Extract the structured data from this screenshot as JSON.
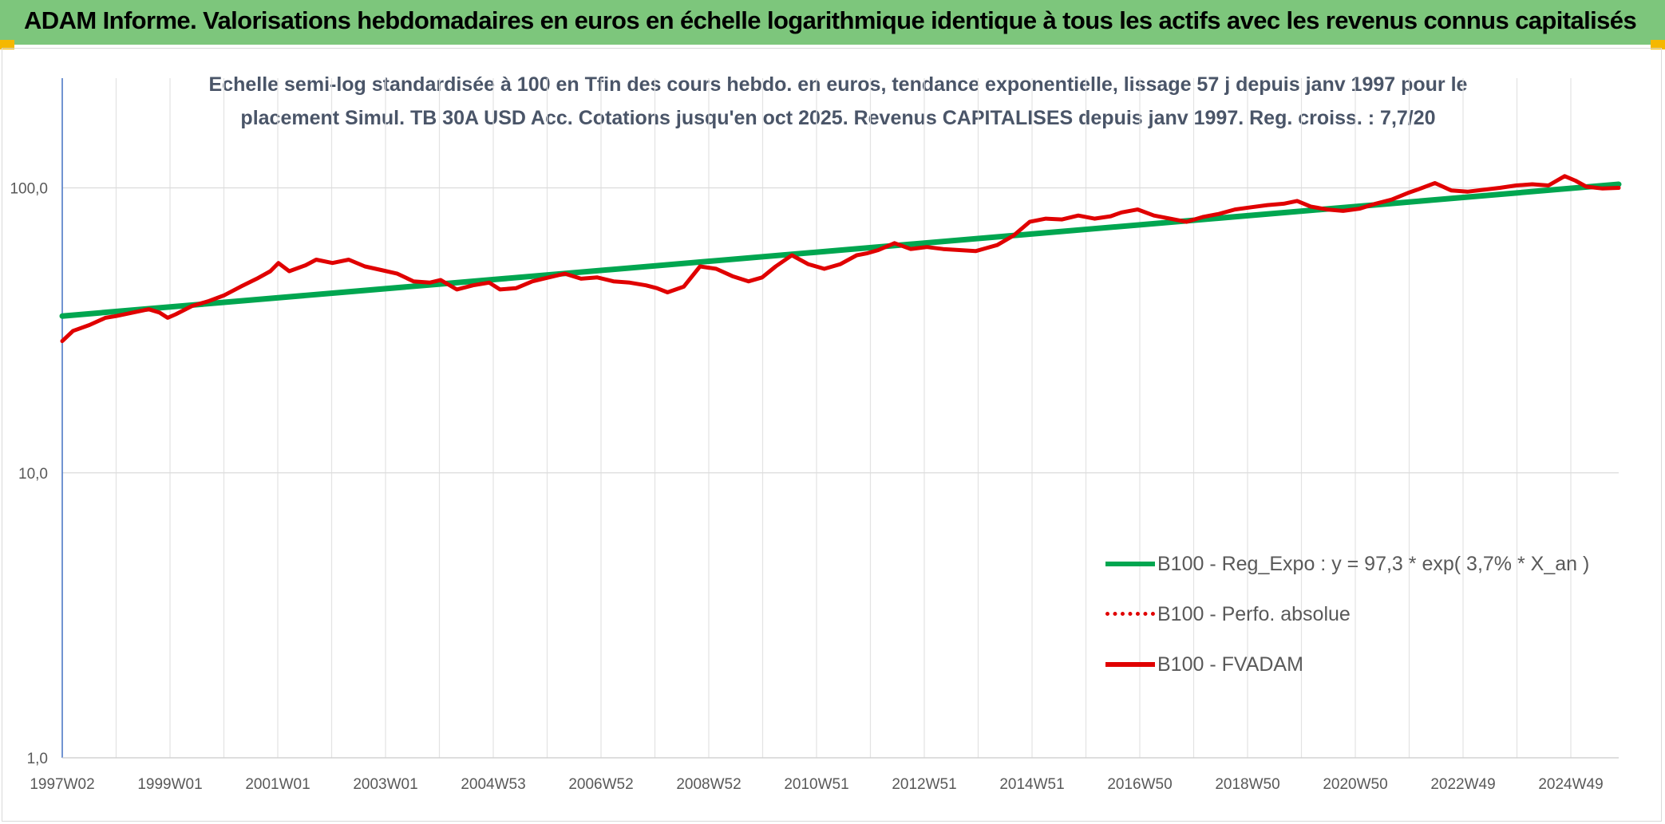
{
  "header": {
    "title": "ADAM Informe. Valorisations hebdomadaires en euros en échelle logarithmique identique à tous les actifs avec les revenus connus capitalisés"
  },
  "chart_data": {
    "type": "line",
    "title_line1": "Echelle semi-log standardisée à 100 en Tfin des cours hebdo. en euros, tendance exponentielle, lissage 57 j depuis janv 1997 pour le",
    "title_line2": "placement Simul. TB 30A USD Acc. Cotations jusqu'en oct 2025. Revenus CAPITALISES depuis janv 1997. Reg. croiss. : 7,7/20",
    "y_scale": "log",
    "ylim": [
      1,
      200
    ],
    "y_ticks": [
      {
        "value": 1,
        "label": "1,0"
      },
      {
        "value": 10,
        "label": "10,0"
      },
      {
        "value": 100,
        "label": "100,0"
      }
    ],
    "x_tick_labels": [
      "1997W02",
      "1999W01",
      "2001W01",
      "2003W01",
      "2004W53",
      "2006W52",
      "2008W52",
      "2010W51",
      "2012W51",
      "2014W51",
      "2016W50",
      "2018W50",
      "2020W50",
      "2022W49",
      "2024W49"
    ],
    "xlim": [
      1997.0,
      2025.8
    ],
    "grid": true,
    "legend_position": "lower-right",
    "series": [
      {
        "name": "B100 - Reg_Expo : y = 97,3 * exp( 3,7% *  X_an )",
        "color": "#00a650",
        "style": "solid",
        "x": [
          1997.0,
          2025.8
        ],
        "y": [
          35.5,
          103.0
        ]
      },
      {
        "name": "B100 - Perfo. absolue",
        "color": "#e00000",
        "style": "dotted",
        "x": [],
        "y": []
      },
      {
        "name": "B100 - FVADAM",
        "color": "#e00000",
        "style": "solid",
        "x": [
          1997.0,
          1997.2,
          1997.5,
          1997.8,
          1998.0,
          1998.3,
          1998.6,
          1998.8,
          1998.95,
          1999.1,
          1999.4,
          1999.7,
          2000.0,
          2000.3,
          2000.6,
          2000.85,
          2001.0,
          2001.2,
          2001.5,
          2001.7,
          2002.0,
          2002.3,
          2002.6,
          2002.9,
          2003.2,
          2003.5,
          2003.8,
          2004.0,
          2004.3,
          2004.6,
          2004.9,
          2005.1,
          2005.4,
          2005.7,
          2006.0,
          2006.3,
          2006.6,
          2006.9,
          2007.2,
          2007.5,
          2007.8,
          2008.0,
          2008.2,
          2008.5,
          2008.8,
          2009.1,
          2009.4,
          2009.7,
          2009.95,
          2010.2,
          2010.5,
          2010.8,
          2011.1,
          2011.4,
          2011.7,
          2011.9,
          2012.1,
          2012.4,
          2012.7,
          2013.0,
          2013.3,
          2013.6,
          2013.9,
          2014.1,
          2014.3,
          2014.6,
          2014.9,
          2015.2,
          2015.5,
          2015.8,
          2016.1,
          2016.4,
          2016.6,
          2016.9,
          2017.2,
          2017.5,
          2017.8,
          2018.1,
          2018.4,
          2018.7,
          2019.0,
          2019.3,
          2019.6,
          2019.85,
          2020.1,
          2020.4,
          2020.7,
          2021.0,
          2021.3,
          2021.6,
          2021.9,
          2022.1,
          2022.4,
          2022.7,
          2023.0,
          2023.3,
          2023.6,
          2023.9,
          2024.2,
          2024.5,
          2024.8,
          2025.0,
          2025.2,
          2025.5,
          2025.8
        ],
        "y": [
          29.0,
          31.5,
          33.0,
          35.0,
          35.5,
          36.5,
          37.5,
          36.5,
          35.0,
          36.0,
          38.5,
          40.0,
          42.0,
          45.0,
          48.0,
          51.0,
          54.5,
          51.0,
          53.5,
          56.0,
          54.5,
          56.0,
          53.0,
          51.5,
          50.0,
          47.0,
          46.5,
          47.5,
          44.0,
          45.5,
          46.5,
          44.0,
          44.5,
          47.0,
          48.5,
          50.0,
          48.0,
          48.5,
          47.0,
          46.5,
          45.5,
          44.5,
          43.0,
          45.0,
          53.0,
          52.0,
          49.0,
          47.0,
          48.5,
          53.0,
          58.0,
          54.0,
          52.0,
          54.0,
          58.0,
          59.0,
          60.5,
          64.0,
          61.0,
          62.0,
          61.0,
          60.5,
          60.0,
          61.5,
          63.0,
          68.0,
          76.0,
          78.0,
          77.5,
          80.0,
          78.0,
          79.5,
          82.0,
          84.0,
          80.0,
          78.0,
          76.0,
          79.0,
          81.0,
          84.0,
          85.5,
          87.0,
          88.0,
          90.0,
          86.0,
          84.0,
          83.0,
          84.5,
          88.0,
          91.0,
          96.0,
          99.0,
          104.0,
          98.0,
          97.0,
          98.5,
          100.0,
          102.0,
          103.0,
          102.0,
          110.0,
          106.0,
          101.0,
          99.5,
          100.0
        ]
      }
    ]
  }
}
